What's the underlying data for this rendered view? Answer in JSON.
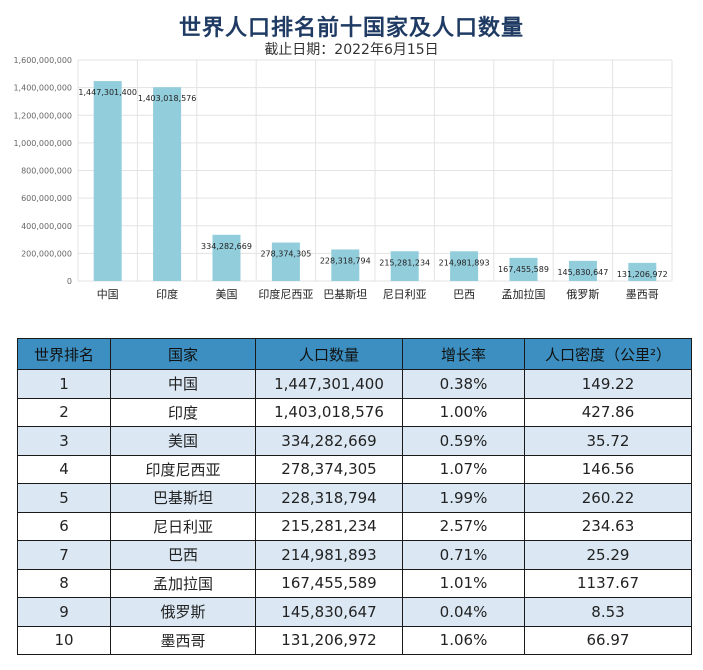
{
  "title": "世界人口排名前十国家及人口数量",
  "subtitle": "截止日期：2022年6月15日",
  "colors": {
    "bar": "#92cddc",
    "header": "#3c8fc0",
    "title": "#1f3b63"
  },
  "chart_data": {
    "type": "bar",
    "title": "世界人口排名前十国家及人口数量",
    "subtitle": "截止日期：2022年6月15日",
    "xlabel": "",
    "ylabel": "",
    "ylim": [
      0,
      1600000000
    ],
    "yticks": [
      0,
      200000000,
      400000000,
      600000000,
      800000000,
      1000000000,
      1200000000,
      1400000000,
      1600000000
    ],
    "ytick_labels": [
      "0",
      "200,000,000",
      "400,000,000",
      "600,000,000",
      "800,000,000",
      "1,000,000,000",
      "1,200,000,000",
      "1,400,000,000",
      "1,600,000,000"
    ],
    "grid": true,
    "categories": [
      "中国",
      "印度",
      "美国",
      "印度尼西亚",
      "巴基斯坦",
      "尼日利亚",
      "巴西",
      "孟加拉国",
      "俄罗斯",
      "墨西哥"
    ],
    "values": [
      1447301400,
      1403018576,
      334282669,
      278374305,
      228318794,
      215281234,
      214981893,
      167455589,
      145830647,
      131206972
    ],
    "value_labels": [
      "1,447,301,400",
      "1,403,018,576",
      "334,282,669",
      "278,374,305",
      "228,318,794",
      "215,281,234",
      "214,981,893",
      "167,455,589",
      "145,830,647",
      "131,206,972"
    ]
  },
  "table": {
    "headers": [
      "世界排名",
      "国家",
      "人口数量",
      "增长率",
      "人口密度（公里²）"
    ],
    "rows": [
      [
        "1",
        "中国",
        "1,447,301,400",
        "0.38%",
        "149.22"
      ],
      [
        "2",
        "印度",
        "1,403,018,576",
        "1.00%",
        "427.86"
      ],
      [
        "3",
        "美国",
        "334,282,669",
        "0.59%",
        "35.72"
      ],
      [
        "4",
        "印度尼西亚",
        "278,374,305",
        "1.07%",
        "146.56"
      ],
      [
        "5",
        "巴基斯坦",
        "228,318,794",
        "1.99%",
        "260.22"
      ],
      [
        "6",
        "尼日利亚",
        "215,281,234",
        "2.57%",
        "234.63"
      ],
      [
        "7",
        "巴西",
        "214,981,893",
        "0.71%",
        "25.29"
      ],
      [
        "8",
        "孟加拉国",
        "167,455,589",
        "1.01%",
        "1137.67"
      ],
      [
        "9",
        "俄罗斯",
        "145,830,647",
        "0.04%",
        "8.53"
      ],
      [
        "10",
        "墨西哥",
        "131,206,972",
        "1.06%",
        "66.97"
      ]
    ]
  }
}
